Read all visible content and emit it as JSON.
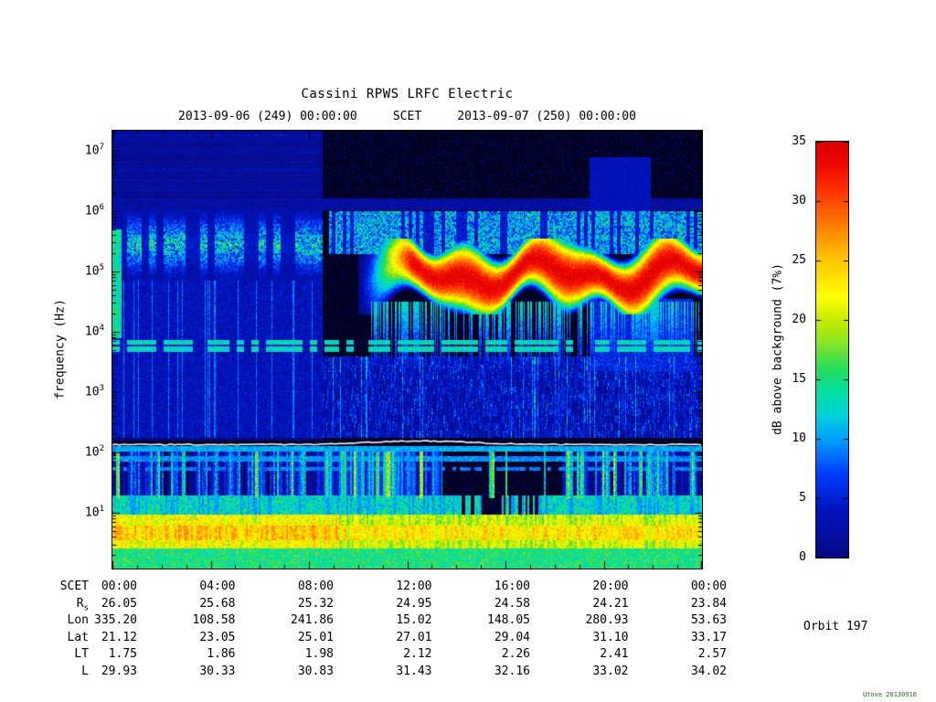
{
  "header": {
    "title": "Cassini RPWS LRFC Electric",
    "subtitle": "2013-09-06 (249) 00:00:00     SCET     2013-09-07 (250) 00:00:00"
  },
  "footer": {
    "orbit": "Orbit 197",
    "stamp": "Utove 20130916"
  },
  "chart_data": {
    "type": "heatmap",
    "subtype": "spectrogram",
    "title": "Cassini RPWS LRFC Electric",
    "time_start": "2013-09-06 (249) 00:00:00",
    "time_end": "2013-09-07 (250) 00:00:00",
    "xlabel": "SCET",
    "ylabel": "frequency (Hz)",
    "x_ticks": [
      "00:00",
      "04:00",
      "08:00",
      "12:00",
      "16:00",
      "20:00",
      "00:00"
    ],
    "x_range_hours": [
      0,
      24
    ],
    "y_scale": "log10",
    "y_ticks_exp": [
      1,
      2,
      3,
      4,
      5,
      6,
      7
    ],
    "y_range_exp": [
      0.076,
      7.33
    ],
    "grid": false,
    "colorbar": {
      "label": "dB above background (7%)",
      "min": 0,
      "max": 35,
      "ticks": [
        0,
        5,
        10,
        15,
        20,
        25,
        30,
        35
      ],
      "stops": [
        [
          -3,
          0,
          0,
          0
        ],
        [
          0,
          8,
          8,
          130
        ],
        [
          4,
          0,
          20,
          190
        ],
        [
          7,
          0,
          60,
          255
        ],
        [
          10,
          0,
          160,
          255
        ],
        [
          12,
          0,
          210,
          220
        ],
        [
          14,
          0,
          225,
          160
        ],
        [
          16,
          40,
          220,
          90
        ],
        [
          18,
          130,
          230,
          40
        ],
        [
          20,
          200,
          235,
          0
        ],
        [
          22,
          255,
          255,
          0
        ],
        [
          25,
          255,
          200,
          0
        ],
        [
          27,
          255,
          150,
          0
        ],
        [
          29,
          255,
          100,
          0
        ],
        [
          31,
          255,
          50,
          0
        ],
        [
          33,
          240,
          10,
          0
        ],
        [
          35,
          220,
          0,
          0
        ]
      ]
    },
    "mode_boundary_hour": 8.53,
    "features": {
      "top_left_bands": {
        "t": [
          0,
          8.53
        ],
        "lf": [
          5.95,
          7.33
        ],
        "base": 0,
        "amp": 6
      },
      "line_600k": {
        "t": [
          0,
          24
        ],
        "lf": [
          6.02,
          6.22
        ],
        "base": 0,
        "amp": 4
      },
      "left_streak": {
        "t": [
          0,
          0.35
        ],
        "lf": [
          3.9,
          5.7
        ],
        "base": 10,
        "amp": 8
      },
      "skr_left": {
        "t": [
          0,
          8.53
        ],
        "lf": [
          4.85,
          6.0
        ],
        "base": 2,
        "amp": 20
      },
      "skr_right": {
        "t": [
          8.8,
          24
        ],
        "lf": [
          5.3,
          6.0
        ],
        "base": 2,
        "amp": 16
      },
      "skr_core": {
        "t": [
          10.0,
          24
        ],
        "lf": [
          4.3,
          5.55
        ],
        "peak": 34,
        "falloff": 20
      },
      "core_tails": {
        "t": [
          10.5,
          24
        ],
        "lf": [
          3.4,
          4.5
        ],
        "base": 10,
        "amp": 6
      },
      "nb_lines": {
        "lf1": [
          3.68,
          3.76
        ],
        "lf2": [
          3.79,
          3.87
        ],
        "base": 10,
        "amp": 6
      },
      "mid_left": {
        "t": [
          0,
          8.53
        ],
        "lf": [
          2.25,
          4.85
        ],
        "base": 1,
        "amp": 5
      },
      "mid_right": {
        "t": [
          8.53,
          24
        ],
        "lf": [
          2.25,
          3.6
        ],
        "base": 0.5,
        "amp": 6
      },
      "box_upper": {
        "t": [
          19.4,
          21.9
        ],
        "lf": [
          5.8,
          6.9
        ],
        "base": 2,
        "amp": 3
      },
      "box_lower": {
        "t": [
          19.4,
          23.6
        ],
        "lf": [
          3.35,
          4.55
        ],
        "base": 3,
        "amp": 5
      },
      "line_100": {
        "lf": [
          2.02,
          2.12
        ],
        "base": 8,
        "amp": 5
      },
      "line_85": {
        "lf": [
          1.86,
          1.94
        ],
        "base": 7,
        "amp": 5
      },
      "line_70": {
        "lf": [
          1.7,
          1.77
        ],
        "base": 7,
        "amp": 4
      },
      "low_stripes": {
        "lf": [
          1.25,
          2.02
        ],
        "amp": 22,
        "dark_t": [
          13.4,
          18.3
        ],
        "bright_t": [
          8.53,
          13.4
        ]
      },
      "bottom_a": {
        "lf": [
          0.95,
          1.3
        ],
        "base": 8,
        "amp": 10,
        "gap_t": [
          14.2,
          17.4
        ]
      },
      "bottom_b": {
        "lf": [
          0.42,
          0.98
        ],
        "base": 14,
        "amp": 12
      },
      "bottom_c": {
        "lf": [
          0.076,
          0.45
        ],
        "base": 11,
        "amp": 8
      }
    },
    "white_line": {
      "lf_base": 2.13,
      "bump": 0.06,
      "bump_center_h": 12.5,
      "bump_width": 8
    }
  },
  "ephemeris": {
    "rows": [
      {
        "label": "SCET",
        "values": [
          "00:00",
          "04:00",
          "08:00",
          "12:00",
          "16:00",
          "20:00",
          "00:00"
        ]
      },
      {
        "label": "R_s",
        "values": [
          "26.05",
          "25.68",
          "25.32",
          "24.95",
          "24.58",
          "24.21",
          "23.84"
        ]
      },
      {
        "label": "Lon",
        "values": [
          "335.20",
          "108.58",
          "241.86",
          "15.02",
          "148.05",
          "280.93",
          "53.63"
        ]
      },
      {
        "label": "Lat",
        "values": [
          "21.12",
          "23.05",
          "25.01",
          "27.01",
          "29.04",
          "31.10",
          "33.17"
        ]
      },
      {
        "label": "LT",
        "values": [
          "1.75",
          "1.86",
          "1.98",
          "2.12",
          "2.26",
          "2.41",
          "2.57"
        ]
      },
      {
        "label": "L",
        "values": [
          "29.93",
          "30.33",
          "30.83",
          "31.43",
          "32.16",
          "33.02",
          "34.02"
        ]
      }
    ]
  }
}
